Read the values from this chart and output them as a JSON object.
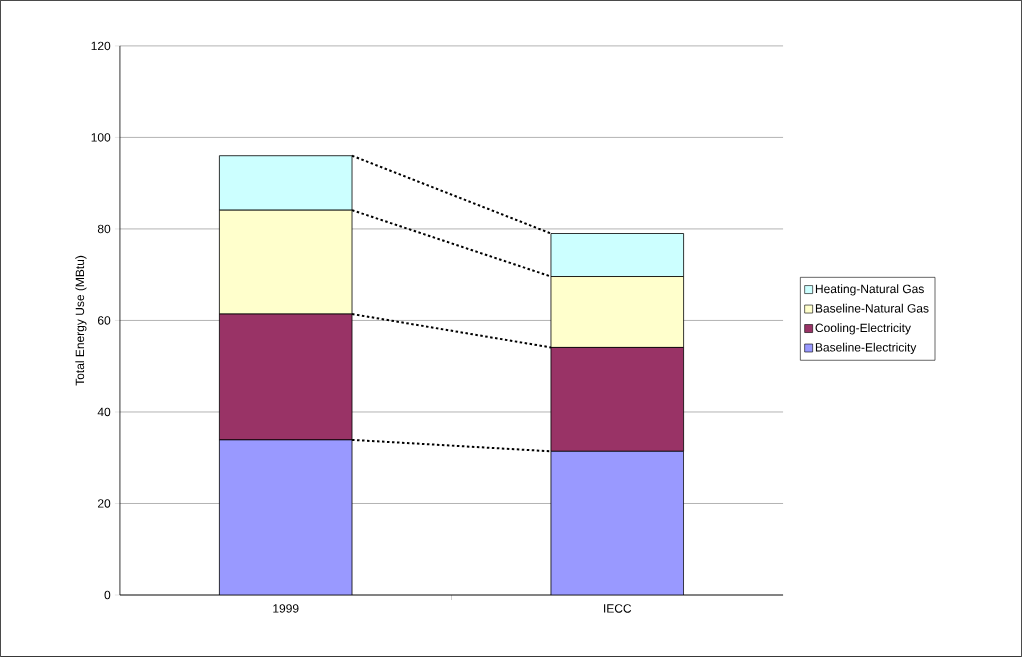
{
  "chart_data": {
    "type": "bar",
    "stacked": true,
    "ylabel": "Total Energy Use (MBtu)",
    "categories": [
      "1999",
      "IECC"
    ],
    "series": [
      {
        "name": "Baseline-Electricity",
        "color": "#9999ff",
        "values": [
          33.9,
          31.4
        ]
      },
      {
        "name": "Cooling-Electricity",
        "color": "#993366",
        "values": [
          27.5,
          22.7
        ]
      },
      {
        "name": "Baseline-Natural Gas",
        "color": "#ffffcc",
        "values": [
          22.7,
          15.5
        ]
      },
      {
        "name": "Heating-Natural Gas",
        "color": "#ccffff",
        "values": [
          11.9,
          9.4
        ]
      }
    ],
    "ylim": [
      0,
      120
    ],
    "yticks": [
      0,
      20,
      40,
      60,
      80,
      100,
      120
    ],
    "grid": "y",
    "legend": "right"
  }
}
